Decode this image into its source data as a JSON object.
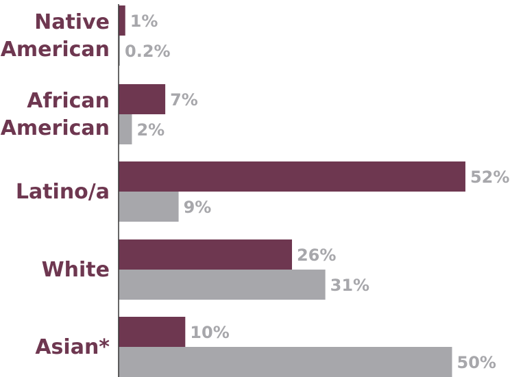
{
  "colors": {
    "series_primary": "#6e3750",
    "series_secondary": "#a7a7ab",
    "category_text": "#6e3750",
    "value_text": "#a7a7ab",
    "axis": "#333333"
  },
  "chart_data": {
    "type": "bar",
    "orientation": "horizontal",
    "title": "",
    "xlabel": "",
    "ylabel": "",
    "xlim": [
      0,
      52
    ],
    "grid": false,
    "legend": "none",
    "categories": [
      [
        "Native",
        "American"
      ],
      [
        "African",
        "American"
      ],
      [
        "Latino/a"
      ],
      [
        "White"
      ],
      [
        "Asian*"
      ]
    ],
    "series": [
      {
        "color": "#6e3750",
        "values": [
          1,
          7,
          52,
          26,
          10
        ],
        "labels": [
          "1%",
          "7%",
          "52%",
          "26%",
          "10%"
        ]
      },
      {
        "color": "#a7a7ab",
        "values": [
          0.2,
          2,
          9,
          31,
          50
        ],
        "labels": [
          "0.2%",
          "2%",
          "9%",
          "31%",
          "50%"
        ]
      }
    ]
  }
}
